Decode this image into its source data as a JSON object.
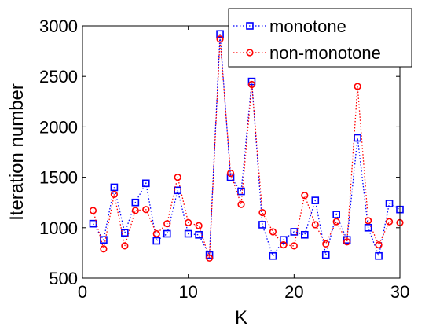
{
  "chart_data": {
    "type": "line",
    "xlabel": "K",
    "ylabel": "Iteration number",
    "xlim": [
      0,
      30
    ],
    "ylim": [
      500,
      3000
    ],
    "x_ticks": [
      0,
      10,
      20,
      30
    ],
    "y_ticks": [
      500,
      1000,
      1500,
      2000,
      2500,
      3000
    ],
    "grid": false,
    "legend_position": "top-right",
    "x": [
      1,
      2,
      3,
      4,
      5,
      6,
      7,
      8,
      9,
      10,
      11,
      12,
      13,
      14,
      15,
      16,
      17,
      18,
      19,
      20,
      21,
      22,
      23,
      24,
      25,
      26,
      27,
      28,
      29,
      30
    ],
    "series": [
      {
        "name": "monotone",
        "color": "#0000ff",
        "marker": "square",
        "line_style": "dotted",
        "values": [
          1040,
          880,
          1400,
          950,
          1250,
          1440,
          870,
          940,
          1370,
          940,
          930,
          730,
          2920,
          1500,
          1360,
          2450,
          1030,
          720,
          880,
          960,
          930,
          1270,
          730,
          1130,
          880,
          1890,
          1000,
          720,
          1240,
          1180
        ]
      },
      {
        "name": "non-monotone",
        "color": "#ff0000",
        "marker": "circle",
        "line_style": "dotted",
        "values": [
          1170,
          790,
          1330,
          820,
          1170,
          1180,
          940,
          1040,
          1500,
          1050,
          1020,
          700,
          2870,
          1540,
          1230,
          2420,
          1150,
          960,
          830,
          820,
          1320,
          1030,
          840,
          1060,
          860,
          2400,
          1070,
          830,
          1060,
          1050
        ]
      }
    ]
  }
}
